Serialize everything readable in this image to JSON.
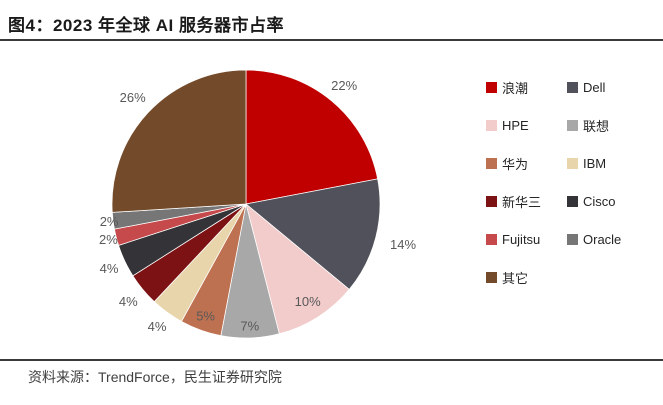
{
  "header": {
    "title": "图4：2023 年全球 AI 服务器市占率"
  },
  "footer": {
    "source": "资料来源：TrendForce，民生证券研究院"
  },
  "chart_data": {
    "type": "pie",
    "title": "2023 年全球 AI 服务器市占率",
    "start_angle_deg": 0,
    "direction": "clockwise",
    "legend_position": "right",
    "legend_columns": 2,
    "label_color": "#595959",
    "slices": [
      {
        "name": "浪潮",
        "value": 22,
        "label": "22%",
        "color": "#c00000"
      },
      {
        "name": "Dell",
        "value": 14,
        "label": "14%",
        "color": "#50515a"
      },
      {
        "name": "HPE",
        "value": 10,
        "label": "10%",
        "color": "#f2cbcb"
      },
      {
        "name": "联想",
        "value": 7,
        "label": "7%",
        "color": "#a8a8a8"
      },
      {
        "name": "华为",
        "value": 5,
        "label": "5%",
        "color": "#be7150"
      },
      {
        "name": "IBM",
        "value": 4,
        "label": "4%",
        "color": "#e8d5ac"
      },
      {
        "name": "新华三",
        "value": 4,
        "label": "4%",
        "color": "#7c1214"
      },
      {
        "name": "Cisco",
        "value": 4,
        "label": "4%",
        "color": "#333338"
      },
      {
        "name": "Fujitsu",
        "value": 2,
        "label": "2%",
        "color": "#c64a4b"
      },
      {
        "name": "Oracle",
        "value": 2,
        "label": "2%",
        "color": "#767676"
      },
      {
        "name": "其它",
        "value": 26,
        "label": "26%",
        "color": "#744b2a"
      }
    ]
  }
}
